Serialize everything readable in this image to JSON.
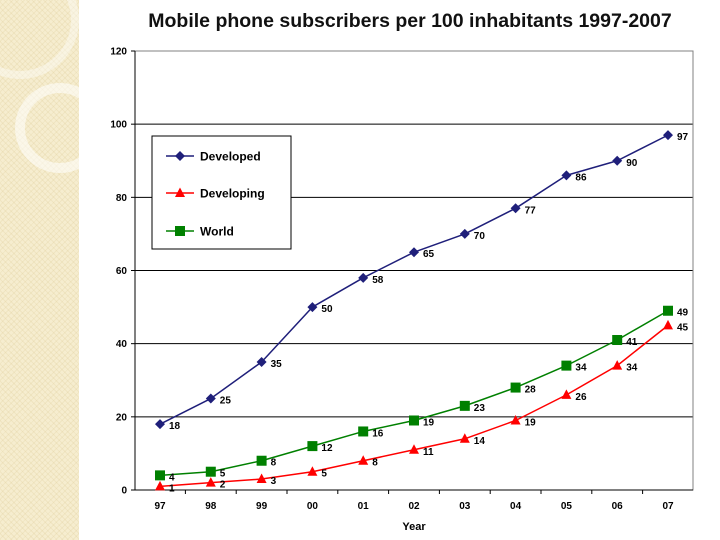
{
  "chart_data": {
    "type": "line",
    "title": "Mobile phone subscribers per 100 inhabitants 1997-2007",
    "xlabel": "Year",
    "ylabel": "",
    "categories": [
      "97",
      "98",
      "99",
      "00",
      "01",
      "02",
      "03",
      "04",
      "05",
      "06",
      "07"
    ],
    "ylim": [
      0,
      120
    ],
    "yticks": [
      0,
      20,
      40,
      60,
      80,
      100,
      120
    ],
    "grid": true,
    "legend_position": "top-left",
    "series": [
      {
        "name": "Developed",
        "color": "#1f1f7a",
        "marker": "diamond",
        "values": [
          18,
          25,
          35,
          50,
          58,
          65,
          70,
          77,
          86,
          90,
          97
        ]
      },
      {
        "name": "Developing",
        "color": "#ff0000",
        "marker": "triangle",
        "values": [
          1,
          2,
          3,
          5,
          8,
          11,
          14,
          19,
          26,
          34,
          45
        ]
      },
      {
        "name": "World",
        "color": "#008000",
        "marker": "square",
        "values": [
          4,
          5,
          8,
          12,
          16,
          19,
          23,
          28,
          34,
          41,
          49
        ]
      }
    ]
  }
}
